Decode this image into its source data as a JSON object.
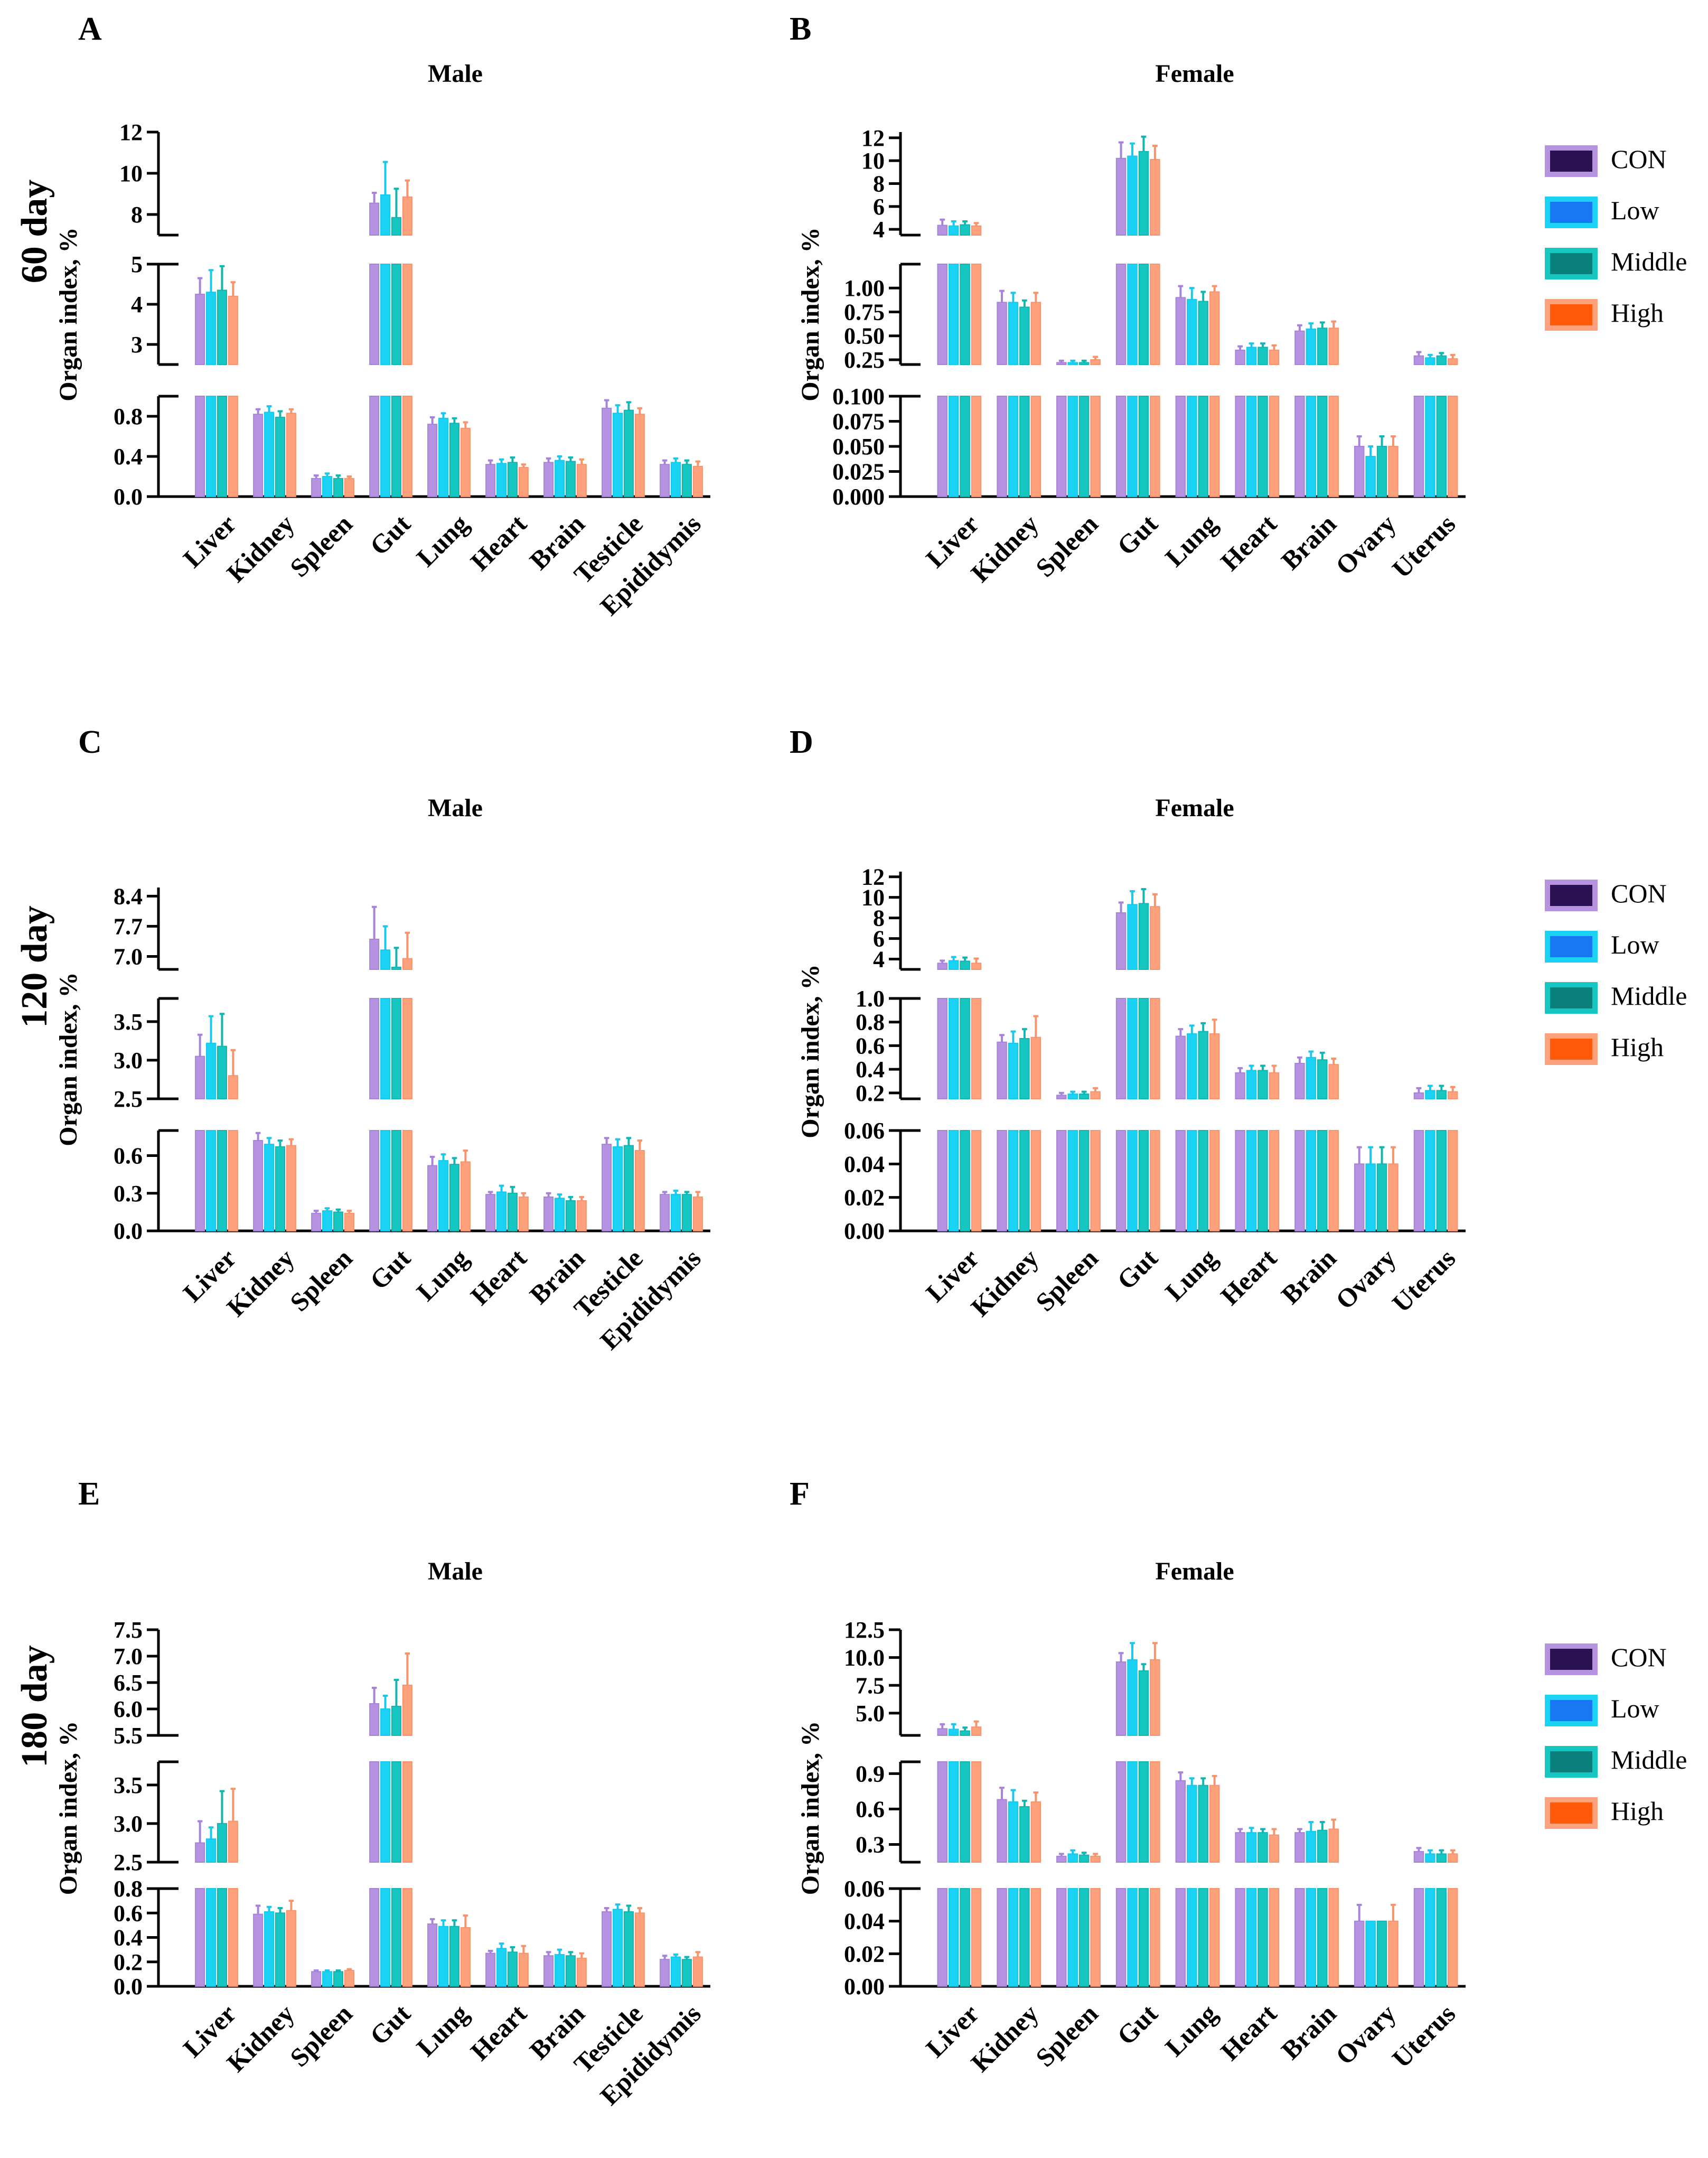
{
  "figure": {
    "group_labels": [
      {
        "name": "CON",
        "fill": "#b593e0",
        "border": "#a883da"
      },
      {
        "name": "Low",
        "fill": "#1ad2f4",
        "border": "#1ac8ec"
      },
      {
        "name": "Middle",
        "fill": "#16c6c0",
        "border": "#12b5b0"
      },
      {
        "name": "High",
        "fill": "#fda27d",
        "border": "#f8946c"
      }
    ],
    "legend_swatch_colors": [
      "#2a1150",
      "#1877f2",
      "#0a7f7c",
      "#ff5a0a"
    ],
    "row_labels": [
      "60 day",
      "120 day",
      "180 day"
    ]
  },
  "chart_data": [
    {
      "panel": "A",
      "title": "Male",
      "type": "bar",
      "ylabel": "Organ index, %",
      "categories": [
        "Liver",
        "Kidney",
        "Spleen",
        "Gut",
        "Lung",
        "Heart",
        "Brain",
        "Testicle",
        "Epididymis"
      ],
      "segments": [
        {
          "range": [
            0,
            1.0
          ],
          "ticks": [
            0.0,
            0.4,
            0.8
          ],
          "tick_labels": [
            "0.0",
            "0.4",
            "0.8"
          ]
        },
        {
          "range": [
            2.5,
            5.0
          ],
          "ticks": [
            3,
            4,
            5
          ],
          "tick_labels": [
            "3",
            "4",
            "5"
          ]
        },
        {
          "range": [
            7,
            12
          ],
          "ticks": [
            8,
            10,
            12
          ],
          "tick_labels": [
            "8",
            "10",
            "12"
          ]
        }
      ],
      "series": [
        {
          "name": "CON",
          "values": [
            4.25,
            0.82,
            0.18,
            8.55,
            0.72,
            0.32,
            0.34,
            0.88,
            0.32
          ],
          "errors": [
            0.4,
            0.05,
            0.03,
            0.5,
            0.07,
            0.04,
            0.04,
            0.08,
            0.04
          ]
        },
        {
          "name": "Low",
          "values": [
            4.3,
            0.84,
            0.2,
            8.95,
            0.78,
            0.33,
            0.36,
            0.83,
            0.34
          ],
          "errors": [
            0.55,
            0.06,
            0.03,
            1.6,
            0.05,
            0.04,
            0.04,
            0.08,
            0.04
          ]
        },
        {
          "name": "Middle",
          "values": [
            4.35,
            0.79,
            0.18,
            7.85,
            0.73,
            0.34,
            0.35,
            0.86,
            0.32
          ],
          "errors": [
            0.6,
            0.06,
            0.03,
            1.4,
            0.05,
            0.05,
            0.04,
            0.08,
            0.04
          ]
        },
        {
          "name": "High",
          "values": [
            4.2,
            0.83,
            0.18,
            8.85,
            0.68,
            0.29,
            0.32,
            0.82,
            0.3
          ],
          "errors": [
            0.35,
            0.04,
            0.02,
            0.8,
            0.06,
            0.03,
            0.05,
            0.06,
            0.05
          ]
        }
      ]
    },
    {
      "panel": "B",
      "title": "Female",
      "type": "bar",
      "ylabel": "Organ index, %",
      "categories": [
        "Liver",
        "Kidney",
        "Spleen",
        "Gut",
        "Lung",
        "Heart",
        "Brain",
        "Ovary",
        "Uterus"
      ],
      "segments": [
        {
          "range": [
            0,
            0.1
          ],
          "ticks": [
            0.0,
            0.025,
            0.05,
            0.075,
            0.1
          ],
          "tick_labels": [
            "0.000",
            "0.025",
            "0.050",
            "0.075",
            "0.100"
          ]
        },
        {
          "range": [
            0.2,
            1.25
          ],
          "ticks": [
            0.25,
            0.5,
            0.75,
            1.0
          ],
          "tick_labels": [
            "0.25",
            "0.50",
            "0.75",
            "1.00"
          ]
        },
        {
          "range": [
            3.5,
            12.5
          ],
          "ticks": [
            4,
            6,
            8,
            10,
            12
          ],
          "tick_labels": [
            "4",
            "6",
            "8",
            "10",
            "12"
          ]
        }
      ],
      "series": [
        {
          "name": "CON",
          "values": [
            4.35,
            0.85,
            0.22,
            10.2,
            0.9,
            0.35,
            0.55,
            0.05,
            0.29
          ],
          "errors": [
            0.5,
            0.12,
            0.02,
            1.4,
            0.12,
            0.04,
            0.06,
            0.01,
            0.04
          ]
        },
        {
          "name": "Low",
          "values": [
            4.3,
            0.85,
            0.22,
            10.4,
            0.88,
            0.38,
            0.57,
            0.04,
            0.27
          ],
          "errors": [
            0.4,
            0.1,
            0.02,
            1.1,
            0.12,
            0.04,
            0.06,
            0.01,
            0.03
          ]
        },
        {
          "name": "Middle",
          "values": [
            4.4,
            0.8,
            0.22,
            10.8,
            0.86,
            0.38,
            0.58,
            0.05,
            0.29
          ],
          "errors": [
            0.3,
            0.07,
            0.02,
            1.3,
            0.1,
            0.04,
            0.06,
            0.01,
            0.03
          ]
        },
        {
          "name": "High",
          "values": [
            4.3,
            0.85,
            0.25,
            10.1,
            0.96,
            0.35,
            0.58,
            0.05,
            0.26
          ],
          "errors": [
            0.25,
            0.1,
            0.03,
            1.2,
            0.06,
            0.05,
            0.07,
            0.01,
            0.04
          ]
        }
      ]
    },
    {
      "panel": "C",
      "title": "Male",
      "type": "bar",
      "ylabel": "Organ index, %",
      "categories": [
        "Liver",
        "Kidney",
        "Spleen",
        "Gut",
        "Lung",
        "Heart",
        "Brain",
        "Testicle",
        "Epididymis"
      ],
      "segments": [
        {
          "range": [
            0,
            0.8
          ],
          "ticks": [
            0.0,
            0.3,
            0.6
          ],
          "tick_labels": [
            "0.0",
            "0.3",
            "0.6"
          ]
        },
        {
          "range": [
            2.5,
            3.8
          ],
          "ticks": [
            2.5,
            3.0,
            3.5
          ],
          "tick_labels": [
            "2.5",
            "3.0",
            "3.5"
          ]
        },
        {
          "range": [
            6.7,
            8.6
          ],
          "ticks": [
            7.0,
            7.7,
            8.4
          ],
          "tick_labels": [
            "7.0",
            "7.7",
            "8.4"
          ]
        }
      ],
      "series": [
        {
          "name": "CON",
          "values": [
            3.05,
            0.72,
            0.14,
            7.4,
            0.52,
            0.29,
            0.27,
            0.69,
            0.29
          ],
          "errors": [
            0.28,
            0.06,
            0.02,
            0.75,
            0.07,
            0.02,
            0.03,
            0.05,
            0.02
          ]
        },
        {
          "name": "Low",
          "values": [
            3.22,
            0.69,
            0.16,
            7.15,
            0.56,
            0.31,
            0.26,
            0.67,
            0.29
          ],
          "errors": [
            0.35,
            0.05,
            0.02,
            0.55,
            0.05,
            0.05,
            0.03,
            0.06,
            0.03
          ]
        },
        {
          "name": "Middle",
          "values": [
            3.18,
            0.67,
            0.15,
            6.75,
            0.53,
            0.3,
            0.24,
            0.68,
            0.29
          ],
          "errors": [
            0.42,
            0.05,
            0.02,
            0.45,
            0.05,
            0.05,
            0.03,
            0.06,
            0.02
          ]
        },
        {
          "name": "High",
          "values": [
            2.8,
            0.68,
            0.14,
            6.95,
            0.55,
            0.27,
            0.24,
            0.64,
            0.27
          ],
          "errors": [
            0.33,
            0.05,
            0.02,
            0.6,
            0.09,
            0.03,
            0.03,
            0.08,
            0.04
          ]
        }
      ]
    },
    {
      "panel": "D",
      "title": "Female",
      "type": "bar",
      "ylabel": "Organ index, %",
      "categories": [
        "Liver",
        "Kidney",
        "Spleen",
        "Gut",
        "Lung",
        "Heart",
        "Brain",
        "Ovary",
        "Uterus"
      ],
      "segments": [
        {
          "range": [
            0,
            0.06
          ],
          "ticks": [
            0.0,
            0.02,
            0.04,
            0.06
          ],
          "tick_labels": [
            "0.00",
            "0.02",
            "0.04",
            "0.06"
          ]
        },
        {
          "range": [
            0.15,
            1.0
          ],
          "ticks": [
            0.2,
            0.4,
            0.6,
            0.8,
            1.0
          ],
          "tick_labels": [
            "0.2",
            "0.4",
            "0.6",
            "0.8",
            "1.0"
          ]
        },
        {
          "range": [
            3.0,
            12.5
          ],
          "ticks": [
            4,
            6,
            8,
            10,
            12
          ],
          "tick_labels": [
            "4",
            "6",
            "8",
            "10",
            "12"
          ]
        }
      ],
      "series": [
        {
          "name": "CON",
          "values": [
            3.6,
            0.63,
            0.18,
            8.5,
            0.68,
            0.37,
            0.45,
            0.04,
            0.2
          ],
          "errors": [
            0.25,
            0.06,
            0.02,
            1.0,
            0.06,
            0.04,
            0.05,
            0.01,
            0.04
          ]
        },
        {
          "name": "Low",
          "values": [
            3.85,
            0.62,
            0.19,
            9.3,
            0.7,
            0.39,
            0.5,
            0.04,
            0.22
          ],
          "errors": [
            0.35,
            0.1,
            0.02,
            1.3,
            0.07,
            0.04,
            0.05,
            0.01,
            0.04
          ]
        },
        {
          "name": "Middle",
          "values": [
            3.8,
            0.66,
            0.19,
            9.4,
            0.72,
            0.39,
            0.48,
            0.04,
            0.22
          ],
          "errors": [
            0.35,
            0.08,
            0.02,
            1.4,
            0.07,
            0.04,
            0.06,
            0.01,
            0.04
          ]
        },
        {
          "name": "High",
          "values": [
            3.6,
            0.67,
            0.21,
            9.1,
            0.7,
            0.37,
            0.44,
            0.04,
            0.21
          ],
          "errors": [
            0.45,
            0.18,
            0.03,
            1.2,
            0.12,
            0.06,
            0.05,
            0.01,
            0.04
          ]
        }
      ]
    },
    {
      "panel": "E",
      "title": "Male",
      "type": "bar",
      "ylabel": "Organ index, %",
      "categories": [
        "Liver",
        "Kidney",
        "Spleen",
        "Gut",
        "Lung",
        "Heart",
        "Brain",
        "Testicle",
        "Epididymis"
      ],
      "segments": [
        {
          "range": [
            0,
            0.8
          ],
          "ticks": [
            0.0,
            0.2,
            0.4,
            0.6,
            0.8
          ],
          "tick_labels": [
            "0.0",
            "0.2",
            "0.4",
            "0.6",
            "0.8"
          ]
        },
        {
          "range": [
            2.5,
            3.8
          ],
          "ticks": [
            2.5,
            3.0,
            3.5
          ],
          "tick_labels": [
            "2.5",
            "3.0",
            "3.5"
          ]
        },
        {
          "range": [
            5.5,
            7.5
          ],
          "ticks": [
            5.5,
            6.0,
            6.5,
            7.0,
            7.5
          ],
          "tick_labels": [
            "5.5",
            "6.0",
            "6.5",
            "7.0",
            "7.5"
          ]
        }
      ],
      "series": [
        {
          "name": "CON",
          "values": [
            2.75,
            0.59,
            0.12,
            6.1,
            0.51,
            0.27,
            0.25,
            0.61,
            0.22
          ],
          "errors": [
            0.28,
            0.07,
            0.01,
            0.3,
            0.04,
            0.02,
            0.03,
            0.03,
            0.03
          ]
        },
        {
          "name": "Low",
          "values": [
            2.8,
            0.61,
            0.12,
            6.0,
            0.49,
            0.31,
            0.26,
            0.63,
            0.24
          ],
          "errors": [
            0.15,
            0.04,
            0.01,
            0.25,
            0.05,
            0.04,
            0.04,
            0.04,
            0.02
          ]
        },
        {
          "name": "Middle",
          "values": [
            3.0,
            0.6,
            0.12,
            6.05,
            0.49,
            0.28,
            0.25,
            0.61,
            0.22
          ],
          "errors": [
            0.42,
            0.04,
            0.01,
            0.5,
            0.05,
            0.04,
            0.03,
            0.05,
            0.02
          ]
        },
        {
          "name": "High",
          "values": [
            3.03,
            0.62,
            0.13,
            6.45,
            0.48,
            0.27,
            0.23,
            0.6,
            0.24
          ],
          "errors": [
            0.42,
            0.08,
            0.01,
            0.6,
            0.1,
            0.06,
            0.04,
            0.04,
            0.04
          ]
        }
      ]
    },
    {
      "panel": "F",
      "title": "Female",
      "type": "bar",
      "ylabel": "Organ index, %",
      "categories": [
        "Liver",
        "Kidney",
        "Spleen",
        "Gut",
        "Lung",
        "Heart",
        "Brain",
        "Ovary",
        "Uterus"
      ],
      "segments": [
        {
          "range": [
            0,
            0.06
          ],
          "ticks": [
            0.0,
            0.02,
            0.04,
            0.06
          ],
          "tick_labels": [
            "0.00",
            "0.02",
            "0.04",
            "0.06"
          ]
        },
        {
          "range": [
            0.15,
            1.0
          ],
          "ticks": [
            0.3,
            0.6,
            0.9
          ],
          "tick_labels": [
            "0.3",
            "0.6",
            "0.9"
          ]
        },
        {
          "range": [
            3.0,
            12.5
          ],
          "ticks": [
            5.0,
            7.5,
            10.0,
            12.5
          ],
          "tick_labels": [
            "5.0",
            "7.5",
            "10.0",
            "12.5"
          ]
        }
      ],
      "series": [
        {
          "name": "CON",
          "values": [
            3.6,
            0.68,
            0.2,
            9.6,
            0.84,
            0.4,
            0.4,
            0.04,
            0.24
          ],
          "errors": [
            0.4,
            0.1,
            0.02,
            0.8,
            0.07,
            0.03,
            0.03,
            0.01,
            0.03
          ]
        },
        {
          "name": "Low",
          "values": [
            3.55,
            0.66,
            0.22,
            9.8,
            0.8,
            0.4,
            0.41,
            0.04,
            0.22
          ],
          "errors": [
            0.45,
            0.1,
            0.03,
            1.5,
            0.06,
            0.04,
            0.08,
            0,
            0.03
          ]
        },
        {
          "name": "Middle",
          "values": [
            3.4,
            0.62,
            0.21,
            8.8,
            0.8,
            0.4,
            0.42,
            0.04,
            0.22
          ],
          "errors": [
            0.3,
            0.05,
            0.02,
            0.6,
            0.06,
            0.03,
            0.07,
            0,
            0.03
          ]
        },
        {
          "name": "High",
          "values": [
            3.75,
            0.66,
            0.2,
            9.8,
            0.8,
            0.38,
            0.43,
            0.04,
            0.22
          ],
          "errors": [
            0.5,
            0.08,
            0.02,
            1.5,
            0.08,
            0.05,
            0.08,
            0.01,
            0.03
          ]
        }
      ]
    }
  ]
}
